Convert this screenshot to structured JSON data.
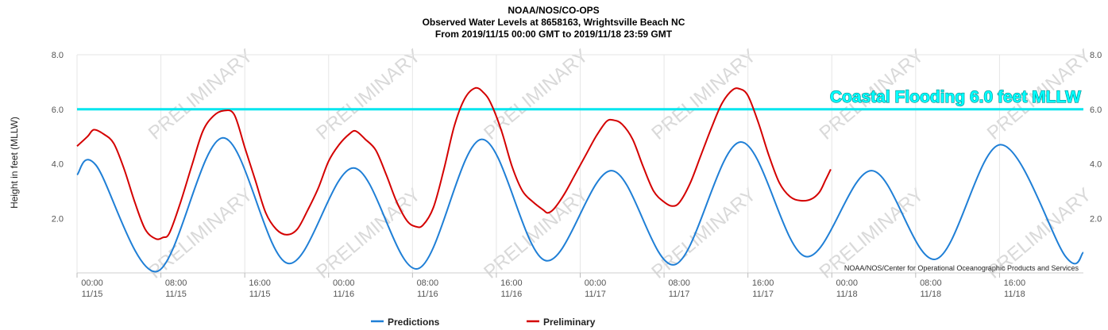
{
  "chart_data": {
    "type": "line",
    "title": [
      "NOAA/NOS/CO-OPS",
      "Observed Water Levels at 8658163, Wrightsville Beach NC",
      "From 2019/11/15 00:00 GMT to 2019/11/18 23:59 GMT"
    ],
    "ylabel": "Height in feet (MLLW)",
    "ylim": [
      0,
      8
    ],
    "yticks": [
      "2.0",
      "4.0",
      "6.0",
      "8.0"
    ],
    "ytick_values": [
      2,
      4,
      6,
      8
    ],
    "xlim_hours": [
      0,
      96
    ],
    "xticks": [
      {
        "time": "00:00",
        "date": "11/15",
        "hour": 0
      },
      {
        "time": "08:00",
        "date": "11/15",
        "hour": 8
      },
      {
        "time": "16:00",
        "date": "11/15",
        "hour": 16
      },
      {
        "time": "00:00",
        "date": "11/16",
        "hour": 24
      },
      {
        "time": "08:00",
        "date": "11/16",
        "hour": 32
      },
      {
        "time": "16:00",
        "date": "11/16",
        "hour": 40
      },
      {
        "time": "00:00",
        "date": "11/17",
        "hour": 48
      },
      {
        "time": "08:00",
        "date": "11/17",
        "hour": 56
      },
      {
        "time": "16:00",
        "date": "11/17",
        "hour": 64
      },
      {
        "time": "00:00",
        "date": "11/18",
        "hour": 72
      },
      {
        "time": "08:00",
        "date": "11/18",
        "hour": 80
      },
      {
        "time": "16:00",
        "date": "11/18",
        "hour": 88
      }
    ],
    "grid": "vertical",
    "legend_position": "bottom-center",
    "threshold": {
      "value": 6.0,
      "label": "Coastal Flooding 6.0 feet MLLW",
      "color": "#00e5ee"
    },
    "series": [
      {
        "name": "Predictions",
        "color": "#1f7fd6",
        "points": [
          [
            0,
            3.6
          ],
          [
            1.8,
            3.95
          ],
          [
            7.6,
            0.05
          ],
          [
            13.9,
            4.95
          ],
          [
            20.1,
            0.35
          ],
          [
            26.4,
            3.85
          ],
          [
            32.5,
            0.15
          ],
          [
            38.6,
            4.9
          ],
          [
            44.7,
            0.45
          ],
          [
            51.0,
            3.75
          ],
          [
            57.0,
            0.3
          ],
          [
            63.3,
            4.8
          ],
          [
            69.5,
            0.6
          ],
          [
            75.8,
            3.75
          ],
          [
            81.9,
            0.5
          ],
          [
            88.1,
            4.7
          ],
          [
            94.3,
            0.6
          ],
          [
            96,
            0.75
          ]
        ]
      },
      {
        "name": "Preliminary",
        "color": "#d40000",
        "points": [
          [
            0,
            4.65
          ],
          [
            1.0,
            5.0
          ],
          [
            1.6,
            5.25
          ],
          [
            2.5,
            5.1
          ],
          [
            3.5,
            4.75
          ],
          [
            4.5,
            3.8
          ],
          [
            5.5,
            2.6
          ],
          [
            6.5,
            1.6
          ],
          [
            7.5,
            1.25
          ],
          [
            8.2,
            1.3
          ],
          [
            8.8,
            1.45
          ],
          [
            9.8,
            2.5
          ],
          [
            11.0,
            4.0
          ],
          [
            12.0,
            5.2
          ],
          [
            13.0,
            5.75
          ],
          [
            14.0,
            5.95
          ],
          [
            15.0,
            5.8
          ],
          [
            16.0,
            4.6
          ],
          [
            17.0,
            3.4
          ],
          [
            18.0,
            2.2
          ],
          [
            19.0,
            1.6
          ],
          [
            20.0,
            1.4
          ],
          [
            21.0,
            1.6
          ],
          [
            22.0,
            2.3
          ],
          [
            23.0,
            3.1
          ],
          [
            24.0,
            4.1
          ],
          [
            25.0,
            4.7
          ],
          [
            26.0,
            5.1
          ],
          [
            26.6,
            5.2
          ],
          [
            27.5,
            4.9
          ],
          [
            28.5,
            4.5
          ],
          [
            29.5,
            3.6
          ],
          [
            30.5,
            2.6
          ],
          [
            31.5,
            1.9
          ],
          [
            32.3,
            1.7
          ],
          [
            33.0,
            1.75
          ],
          [
            34.0,
            2.4
          ],
          [
            35.0,
            3.8
          ],
          [
            36.0,
            5.4
          ],
          [
            37.0,
            6.4
          ],
          [
            38.0,
            6.78
          ],
          [
            38.8,
            6.6
          ],
          [
            39.5,
            6.2
          ],
          [
            40.5,
            5.2
          ],
          [
            41.5,
            3.9
          ],
          [
            42.5,
            3.0
          ],
          [
            43.5,
            2.6
          ],
          [
            44.5,
            2.3
          ],
          [
            44.9,
            2.2
          ],
          [
            45.5,
            2.35
          ],
          [
            46.5,
            2.9
          ],
          [
            47.5,
            3.6
          ],
          [
            48.5,
            4.3
          ],
          [
            49.5,
            5.0
          ],
          [
            50.5,
            5.55
          ],
          [
            51.2,
            5.6
          ],
          [
            52.0,
            5.45
          ],
          [
            53.0,
            4.9
          ],
          [
            54.0,
            3.9
          ],
          [
            55.0,
            3.0
          ],
          [
            56.0,
            2.6
          ],
          [
            56.8,
            2.45
          ],
          [
            57.5,
            2.6
          ],
          [
            58.5,
            3.3
          ],
          [
            59.5,
            4.3
          ],
          [
            60.5,
            5.3
          ],
          [
            61.5,
            6.2
          ],
          [
            62.5,
            6.7
          ],
          [
            63.2,
            6.75
          ],
          [
            64.0,
            6.5
          ],
          [
            65.0,
            5.5
          ],
          [
            66.0,
            4.3
          ],
          [
            67.0,
            3.3
          ],
          [
            68.0,
            2.8
          ],
          [
            69.0,
            2.65
          ],
          [
            70.0,
            2.7
          ],
          [
            70.8,
            2.95
          ],
          [
            71.4,
            3.4
          ],
          [
            71.9,
            3.8
          ]
        ]
      }
    ],
    "watermark": "PRELIMINARY",
    "credit": "NOAA/NOS/Center for Operational Oceanographic Products and Services"
  }
}
